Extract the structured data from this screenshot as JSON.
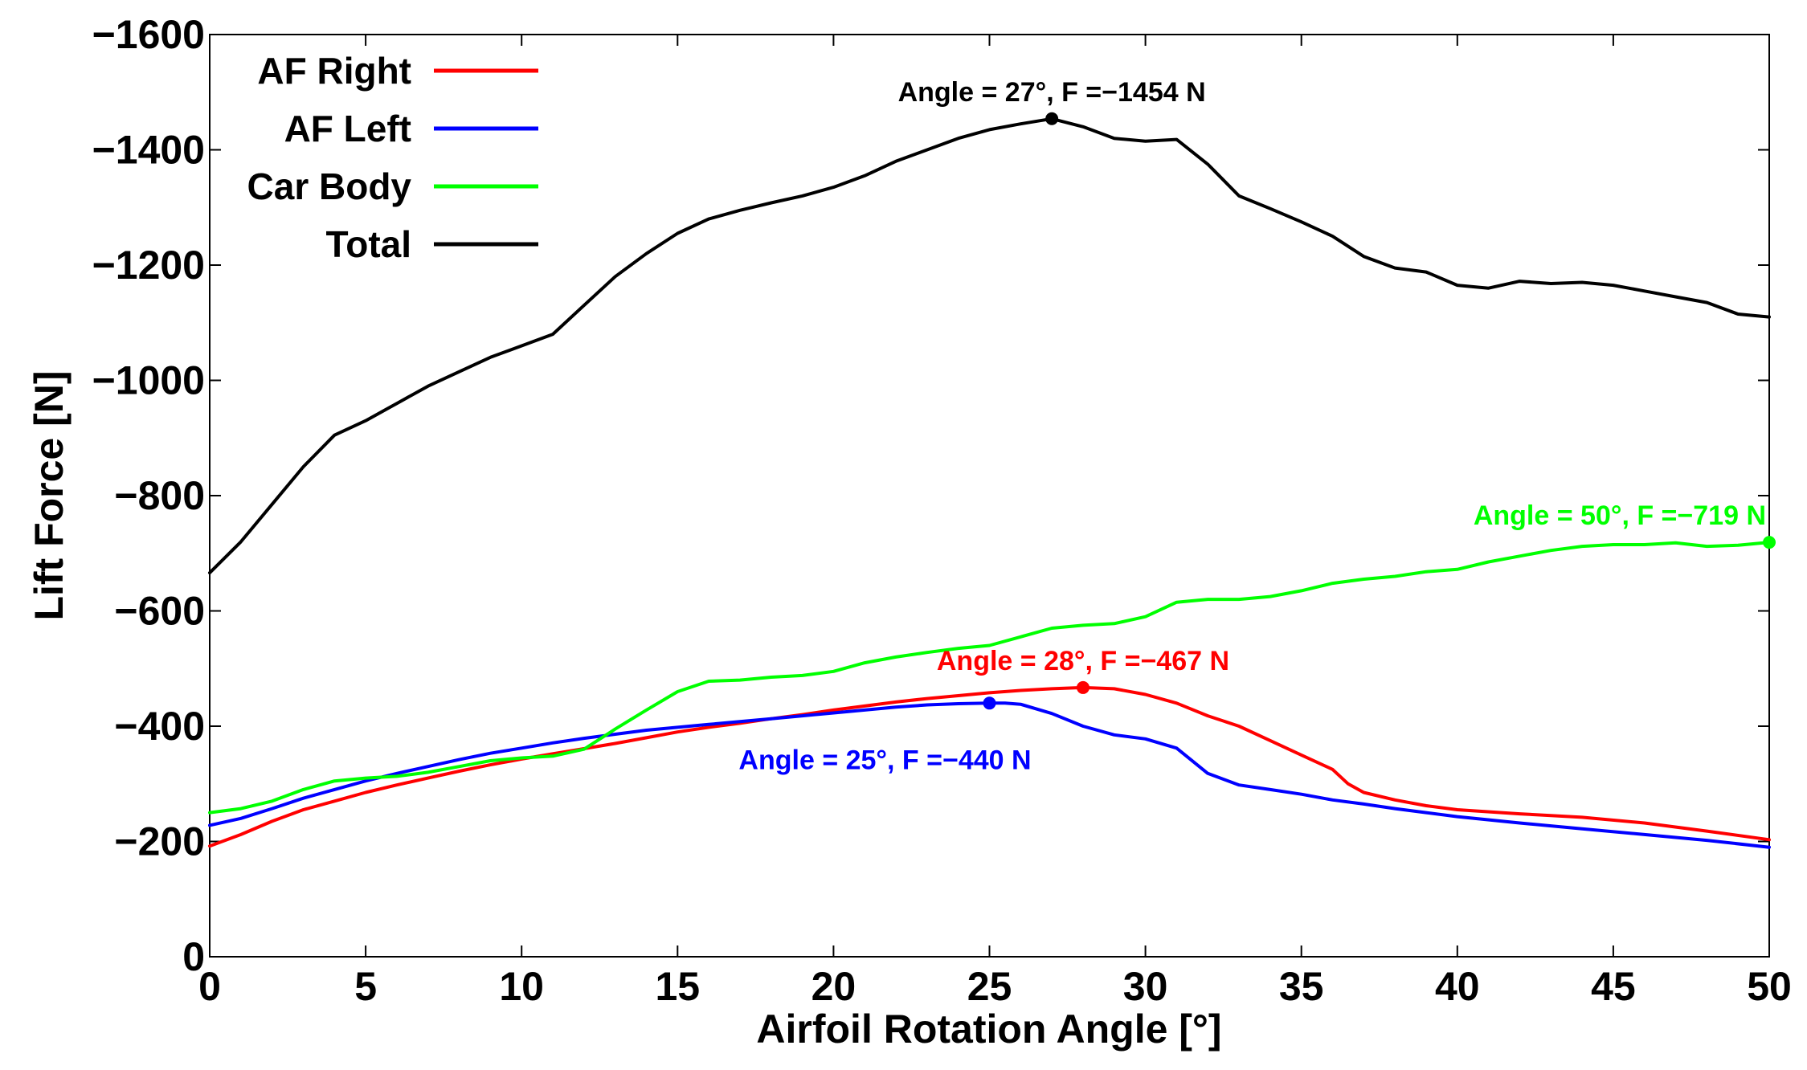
{
  "chart_data": {
    "type": "line",
    "title": "",
    "xlabel": "Airfoil Rotation Angle [°]",
    "ylabel": "Lift Force [N]",
    "xlim": [
      0,
      50
    ],
    "ylim": [
      0,
      -1600
    ],
    "y_axis_inverted": true,
    "grid": false,
    "legend_position": "top-left",
    "x_ticks": [
      {
        "value": 0,
        "label": "0"
      },
      {
        "value": 5,
        "label": "5"
      },
      {
        "value": 10,
        "label": "10"
      },
      {
        "value": 15,
        "label": "15"
      },
      {
        "value": 20,
        "label": "20"
      },
      {
        "value": 25,
        "label": "25"
      },
      {
        "value": 30,
        "label": "30"
      },
      {
        "value": 35,
        "label": "35"
      },
      {
        "value": 40,
        "label": "40"
      },
      {
        "value": 45,
        "label": "45"
      },
      {
        "value": 50,
        "label": "50"
      }
    ],
    "y_ticks": [
      {
        "value": 0,
        "label": "0"
      },
      {
        "value": -200,
        "label": "−200"
      },
      {
        "value": -400,
        "label": "−400"
      },
      {
        "value": -600,
        "label": "−600"
      },
      {
        "value": -800,
        "label": "−800"
      },
      {
        "value": -1000,
        "label": "−1000"
      },
      {
        "value": -1200,
        "label": "−1200"
      },
      {
        "value": -1400,
        "label": "−1400"
      },
      {
        "value": -1600,
        "label": "−1600"
      }
    ],
    "series": [
      {
        "name": "AF Right",
        "color": "#ff0000",
        "x": [
          0,
          1,
          2,
          3,
          4,
          5,
          6,
          7,
          8,
          9,
          10,
          11,
          12,
          13,
          14,
          15,
          16,
          17,
          18,
          19,
          20,
          21,
          22,
          23,
          24,
          25,
          26,
          27,
          28,
          29,
          30,
          31,
          32,
          33,
          34,
          35,
          36,
          36.5,
          37,
          38,
          39,
          40,
          42,
          44,
          46,
          48,
          50
        ],
        "y": [
          -192,
          -212,
          -235,
          -255,
          -270,
          -285,
          -298,
          -310,
          -322,
          -333,
          -343,
          -352,
          -361,
          -370,
          -380,
          -390,
          -398,
          -405,
          -413,
          -420,
          -428,
          -435,
          -442,
          -448,
          -453,
          -458,
          -462,
          -465,
          -467,
          -465,
          -455,
          -440,
          -418,
          -400,
          -375,
          -350,
          -325,
          -300,
          -285,
          -272,
          -262,
          -255,
          -248,
          -242,
          -232,
          -218,
          -203
        ]
      },
      {
        "name": "AF Left",
        "color": "#0000ff",
        "x": [
          0,
          1,
          2,
          3,
          4,
          5,
          6,
          7,
          8,
          9,
          10,
          11,
          12,
          13,
          14,
          15,
          16,
          17,
          18,
          19,
          20,
          21,
          22,
          23,
          24,
          25,
          25.5,
          26,
          27,
          28,
          29,
          30,
          31,
          32,
          33,
          34,
          35,
          36,
          37,
          38,
          39,
          40,
          42,
          44,
          46,
          48,
          50
        ],
        "y": [
          -228,
          -240,
          -257,
          -275,
          -290,
          -305,
          -318,
          -330,
          -342,
          -353,
          -362,
          -371,
          -379,
          -386,
          -393,
          -398,
          -403,
          -408,
          -413,
          -418,
          -423,
          -428,
          -433,
          -437,
          -439,
          -440,
          -440,
          -438,
          -422,
          -400,
          -385,
          -378,
          -362,
          -318,
          -298,
          -290,
          -282,
          -272,
          -265,
          -257,
          -250,
          -243,
          -232,
          -222,
          -212,
          -202,
          -190
        ]
      },
      {
        "name": "Car Body",
        "color": "#00ff00",
        "x": [
          0,
          1,
          2,
          3,
          4,
          5,
          6,
          7,
          8,
          9,
          10,
          11,
          12,
          13,
          14,
          15,
          16,
          17,
          18,
          19,
          20,
          21,
          22,
          23,
          24,
          25,
          26,
          27,
          28,
          29,
          30,
          31,
          32,
          33,
          34,
          35,
          36,
          37,
          38,
          39,
          40,
          41,
          42,
          43,
          44,
          45,
          46,
          47,
          48,
          49,
          50
        ],
        "y": [
          -250,
          -257,
          -270,
          -290,
          -305,
          -310,
          -313,
          -320,
          -330,
          -340,
          -345,
          -348,
          -360,
          -395,
          -428,
          -460,
          -478,
          -480,
          -485,
          -488,
          -495,
          -510,
          -520,
          -528,
          -535,
          -540,
          -555,
          -570,
          -575,
          -578,
          -590,
          -615,
          -620,
          -620,
          -625,
          -635,
          -648,
          -655,
          -660,
          -668,
          -672,
          -685,
          -695,
          -705,
          -712,
          -715,
          -715,
          -718,
          -712,
          -714,
          -719
        ]
      },
      {
        "name": "Total",
        "color": "#000000",
        "x": [
          0,
          1,
          2,
          3,
          4,
          5,
          6,
          7,
          8,
          9,
          10,
          11,
          12,
          13,
          14,
          15,
          16,
          17,
          18,
          19,
          20,
          21,
          22,
          23,
          24,
          25,
          26,
          27,
          28,
          29,
          30,
          31,
          32,
          33,
          34,
          35,
          36,
          37,
          38,
          39,
          40,
          41,
          42,
          43,
          44,
          45,
          46,
          47,
          48,
          49,
          50
        ],
        "y": [
          -666,
          -720,
          -785,
          -850,
          -905,
          -930,
          -960,
          -990,
          -1015,
          -1040,
          -1060,
          -1080,
          -1130,
          -1180,
          -1220,
          -1255,
          -1280,
          -1295,
          -1308,
          -1320,
          -1335,
          -1355,
          -1380,
          -1400,
          -1420,
          -1435,
          -1445,
          -1454,
          -1440,
          -1420,
          -1415,
          -1418,
          -1375,
          -1320,
          -1298,
          -1275,
          -1250,
          -1215,
          -1195,
          -1188,
          -1165,
          -1160,
          -1172,
          -1168,
          -1170,
          -1165,
          -1155,
          -1145,
          -1135,
          -1115,
          -1110
        ]
      }
    ],
    "annotations": [
      {
        "series": "Total",
        "x": 27,
        "y": -1454,
        "text": "Angle = 27°, F =−1454 N",
        "color": "#000000",
        "position": "above"
      },
      {
        "series": "Car Body",
        "x": 50,
        "y": -719,
        "text": "Angle = 50°, F =−719 N",
        "color": "#00ff00",
        "position": "above-left"
      },
      {
        "series": "AF Right",
        "x": 28,
        "y": -467,
        "text": "Angle = 28°, F =−467 N",
        "color": "#ff0000",
        "position": "above"
      },
      {
        "series": "AF Left",
        "x": 25,
        "y": -440,
        "text": "Angle = 25°, F =−440 N",
        "color": "#0000ff",
        "position": "below"
      }
    ]
  }
}
